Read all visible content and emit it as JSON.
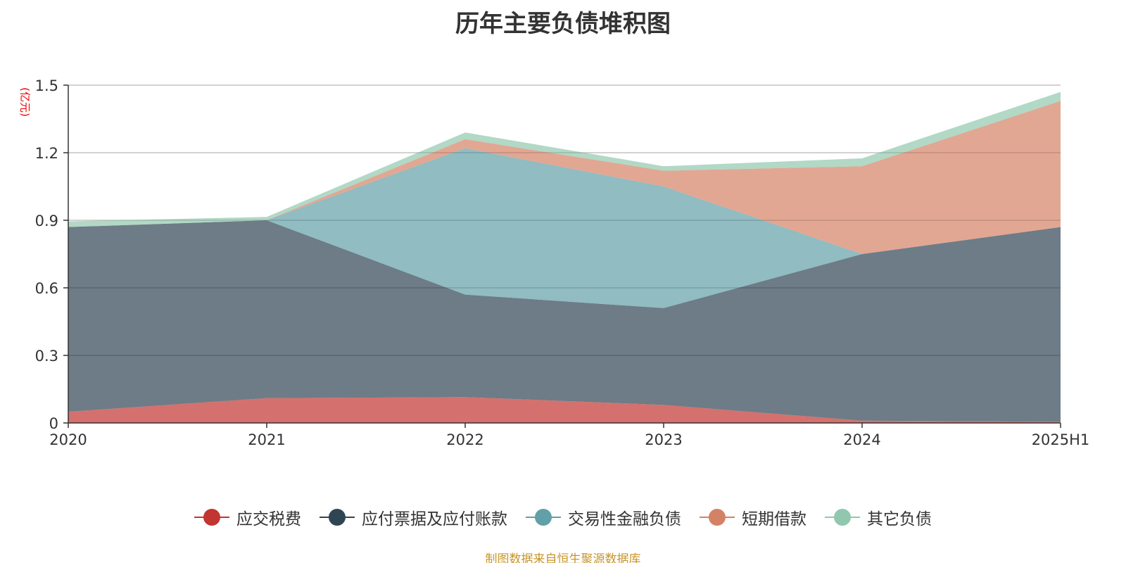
{
  "chart_data": {
    "type": "area",
    "stacked": true,
    "title": "历年主要负债堆积图",
    "unit": "(亿元)",
    "categories": [
      "2020",
      "2021",
      "2022",
      "2023",
      "2024",
      "2025H1"
    ],
    "ylim": [
      0,
      1.5
    ],
    "yticks": [
      0,
      0.3,
      0.6,
      0.9,
      1.2,
      1.5
    ],
    "ytick_labels": [
      "0",
      "0.3",
      "0.6",
      "0.9",
      "1.2",
      "1.5"
    ],
    "grid": true,
    "legend_position": "bottom",
    "series": [
      {
        "name": "应交税费",
        "color": "#c23531",
        "values": [
          0.05,
          0.11,
          0.115,
          0.08,
          0.01,
          0.005
        ]
      },
      {
        "name": "应付票据及应付账款",
        "color": "#2f4554",
        "values": [
          0.82,
          0.79,
          0.455,
          0.43,
          0.74,
          0.865
        ]
      },
      {
        "name": "交易性金融负债",
        "color": "#61a0a8",
        "values": [
          0,
          0,
          0.65,
          0.54,
          0,
          0
        ]
      },
      {
        "name": "短期借款",
        "color": "#d48265",
        "values": [
          0,
          0,
          0.04,
          0.07,
          0.39,
          0.56
        ]
      },
      {
        "name": "其它负债",
        "color": "#91c7ae",
        "values": [
          0.025,
          0.015,
          0.03,
          0.02,
          0.035,
          0.04
        ]
      }
    ]
  },
  "source": "制图数据来自恒生聚源数据库"
}
